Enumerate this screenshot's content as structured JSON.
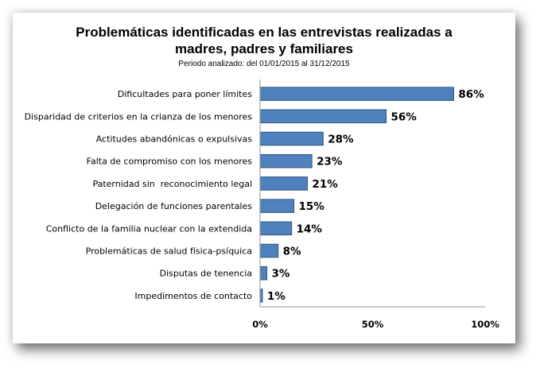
{
  "chart_data": {
    "type": "bar",
    "orientation": "horizontal",
    "title_line1": "Problemáticas identificadas en las entrevistas realizadas a",
    "title_line2": "madres, padres y familiares",
    "subtitle": "Periodo analizado: del 01/01/2015 al 31/12/2015",
    "categories": [
      "Dificultades para poner límites",
      "Disparidad de criterios en la crianza de los menores",
      "Actitudes abandónicas o expulsivas",
      "Falta de compromiso con los menores",
      "Paternidad sin  reconocimiento legal",
      "Delegación de funciones parentales",
      "Conflicto de la familia nuclear con la extendida",
      "Problemáticas de salud física-psíquica",
      "Disputas de tenencia",
      "Impedimentos de contacto"
    ],
    "values": [
      86,
      56,
      28,
      23,
      21,
      15,
      14,
      8,
      3,
      1
    ],
    "value_labels": [
      "86%",
      "56%",
      "28%",
      "23%",
      "21%",
      "15%",
      "14%",
      "8%",
      "3%",
      "1%"
    ],
    "xlim": [
      0,
      100
    ],
    "x_ticks": [
      0,
      50,
      100
    ],
    "x_tick_labels": [
      "0%",
      "50%",
      "100%"
    ],
    "xlabel": "",
    "ylabel": "",
    "grid": false,
    "legend": "none",
    "colors": {
      "bar_fill": "#4f81bd",
      "bar_stroke": "#385d8a",
      "axis": "#a6a6a6"
    }
  }
}
